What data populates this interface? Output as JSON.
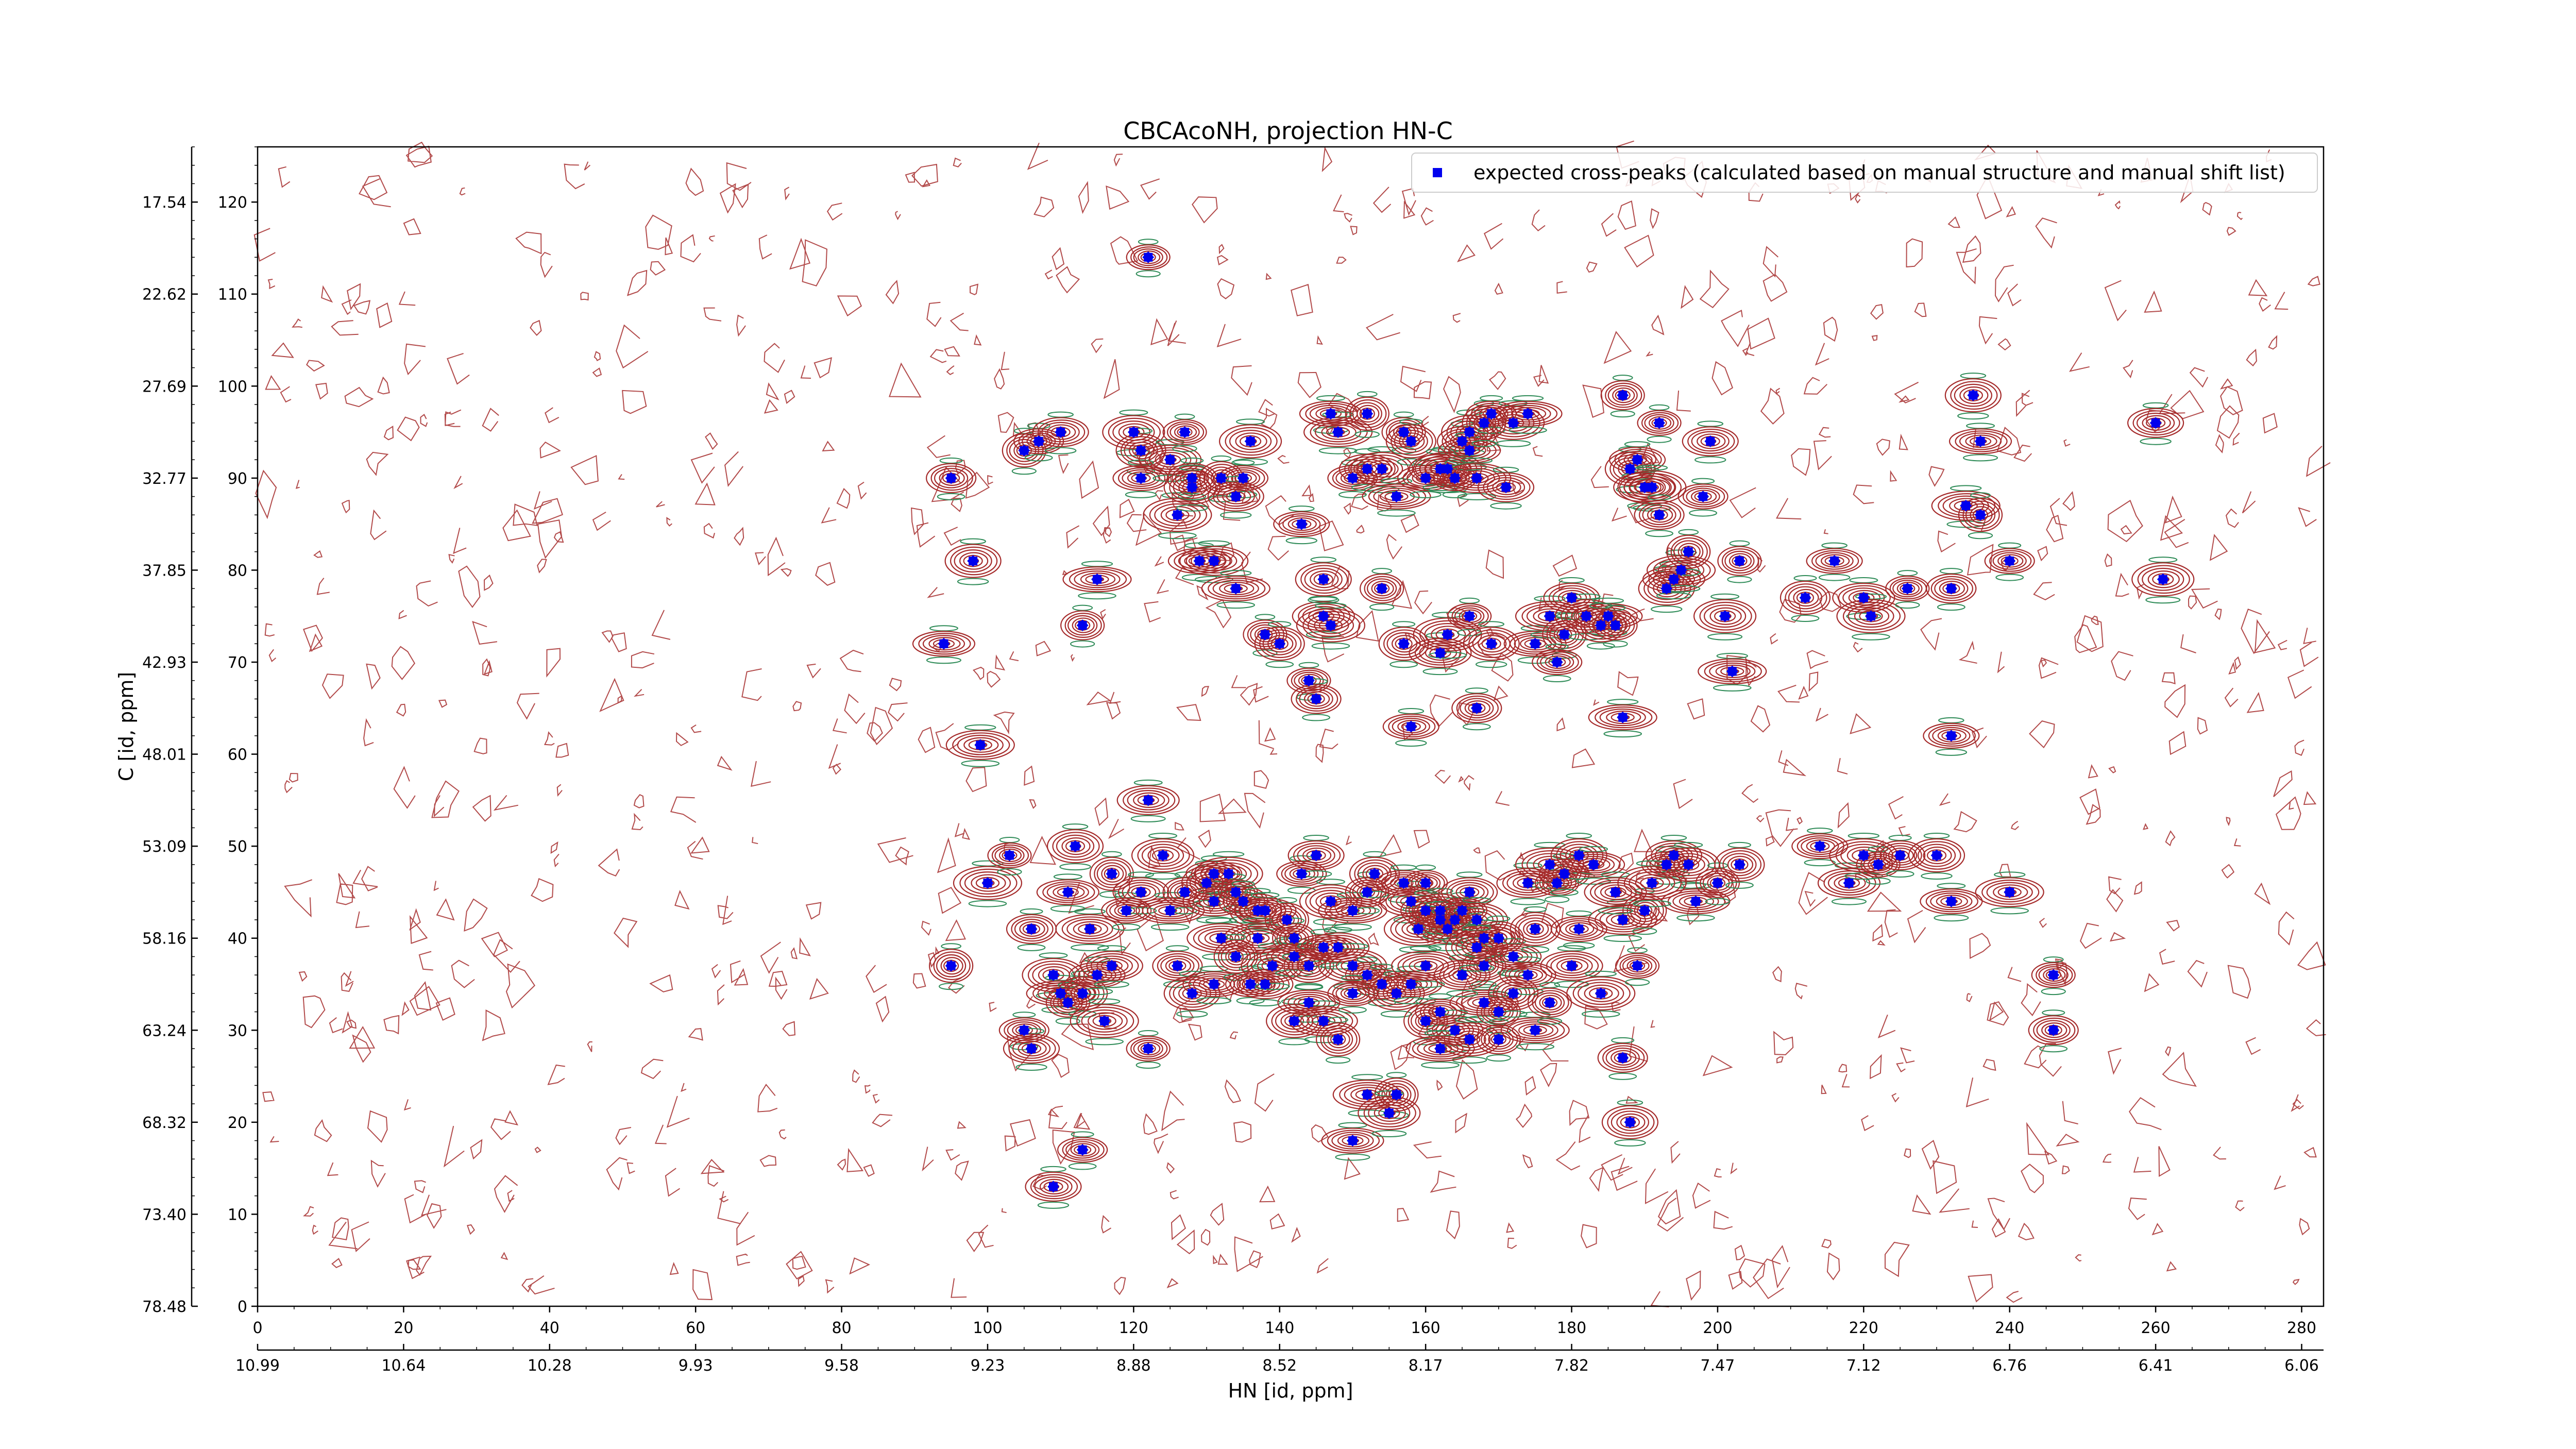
{
  "chart_data": {
    "type": "scatter",
    "title": "CBCAcoNH, projection HN-C",
    "xlabel": "HN [id, ppm]",
    "ylabel": "C [id, ppm]",
    "xlim": [
      0,
      283
    ],
    "ylim": [
      0,
      126
    ],
    "grid": false,
    "legend_position": "top-right",
    "x_ticks": [
      "0",
      "20",
      "40",
      "60",
      "80",
      "100",
      "120",
      "140",
      "160",
      "180",
      "200",
      "220",
      "240",
      "260",
      "280"
    ],
    "x_ppm_ticks": [
      "10.99",
      "10.64",
      "10.28",
      "9.93",
      "9.58",
      "9.23",
      "8.88",
      "8.52",
      "8.17",
      "7.82",
      "7.47",
      "7.12",
      "6.76",
      "6.41",
      "6.06"
    ],
    "y_ticks": [
      "0",
      "10",
      "20",
      "30",
      "40",
      "50",
      "60",
      "70",
      "80",
      "90",
      "100",
      "110",
      "120"
    ],
    "y_ppm_ticks": [
      "78.48",
      "73.40",
      "68.32",
      "63.24",
      "58.16",
      "53.09",
      "48.01",
      "42.93",
      "37.85",
      "32.77",
      "27.69",
      "22.62",
      "17.54"
    ],
    "colors": {
      "contour_positive": "#a52a2a",
      "contour_negative": "#2e8b57",
      "peak_marker": "#0000ee"
    },
    "series": [
      {
        "name": "expected cross-peaks (calculated based on manual structure and manual shift list)",
        "points": [
          [
            122,
            114
          ],
          [
            95,
            90
          ],
          [
            98,
            81
          ],
          [
            94,
            72
          ],
          [
            99,
            61
          ],
          [
            105,
            93
          ],
          [
            107,
            94
          ],
          [
            110,
            95
          ],
          [
            120,
            95
          ],
          [
            115,
            79
          ],
          [
            113,
            74
          ],
          [
            121,
            93
          ],
          [
            121,
            90
          ],
          [
            125,
            92
          ],
          [
            126,
            86
          ],
          [
            127,
            95
          ],
          [
            128,
            90
          ],
          [
            128,
            89
          ],
          [
            129,
            81
          ],
          [
            131,
            81
          ],
          [
            132,
            90
          ],
          [
            135,
            90
          ],
          [
            134,
            88
          ],
          [
            136,
            94
          ],
          [
            134,
            78
          ],
          [
            138,
            73
          ],
          [
            140,
            72
          ],
          [
            143,
            85
          ],
          [
            146,
            75
          ],
          [
            147,
            74
          ],
          [
            144,
            68
          ],
          [
            145,
            66
          ],
          [
            146,
            79
          ],
          [
            147,
            97
          ],
          [
            148,
            95
          ],
          [
            152,
            97
          ],
          [
            150,
            90
          ],
          [
            152,
            91
          ],
          [
            154,
            91
          ],
          [
            156,
            88
          ],
          [
            157,
            95
          ],
          [
            158,
            94
          ],
          [
            160,
            90
          ],
          [
            162,
            91
          ],
          [
            163,
            91
          ],
          [
            164,
            90
          ],
          [
            165,
            94
          ],
          [
            166,
            95
          ],
          [
            166,
            93
          ],
          [
            167,
            90
          ],
          [
            168,
            96
          ],
          [
            169,
            97
          ],
          [
            171,
            89
          ],
          [
            172,
            96
          ],
          [
            174,
            97
          ],
          [
            154,
            78
          ],
          [
            157,
            72
          ],
          [
            158,
            63
          ],
          [
            162,
            71
          ],
          [
            163,
            73
          ],
          [
            166,
            75
          ],
          [
            167,
            65
          ],
          [
            169,
            72
          ],
          [
            175,
            72
          ],
          [
            177,
            75
          ],
          [
            179,
            73
          ],
          [
            178,
            70
          ],
          [
            180,
            77
          ],
          [
            182,
            75
          ],
          [
            185,
            75
          ],
          [
            187,
            99
          ],
          [
            188,
            91
          ],
          [
            189,
            92
          ],
          [
            190,
            89
          ],
          [
            191,
            89
          ],
          [
            192,
            96
          ],
          [
            192,
            86
          ],
          [
            193,
            78
          ],
          [
            194,
            79
          ],
          [
            195,
            80
          ],
          [
            196,
            82
          ],
          [
            198,
            88
          ],
          [
            199,
            94
          ],
          [
            201,
            75
          ],
          [
            202,
            69
          ],
          [
            203,
            81
          ],
          [
            212,
            77
          ],
          [
            216,
            81
          ],
          [
            220,
            77
          ],
          [
            221,
            75
          ],
          [
            226,
            78
          ],
          [
            232,
            78
          ],
          [
            235,
            99
          ],
          [
            236,
            94
          ],
          [
            234,
            87
          ],
          [
            236,
            86
          ],
          [
            240,
            81
          ],
          [
            260,
            96
          ],
          [
            261,
            79
          ],
          [
            187,
            64
          ],
          [
            186,
            74
          ],
          [
            184,
            74
          ],
          [
            232,
            62
          ],
          [
            122,
            55
          ],
          [
            100,
            46
          ],
          [
            103,
            49
          ],
          [
            106,
            41
          ],
          [
            112,
            50
          ],
          [
            111,
            45
          ],
          [
            114,
            41
          ],
          [
            117,
            47
          ],
          [
            119,
            43
          ],
          [
            121,
            45
          ],
          [
            124,
            49
          ],
          [
            125,
            43
          ],
          [
            127,
            45
          ],
          [
            130,
            46
          ],
          [
            131,
            47
          ],
          [
            131,
            44
          ],
          [
            133,
            47
          ],
          [
            134,
            45
          ],
          [
            135,
            44
          ],
          [
            137,
            43
          ],
          [
            138,
            43
          ],
          [
            137,
            40
          ],
          [
            141,
            42
          ],
          [
            143,
            47
          ],
          [
            145,
            49
          ],
          [
            147,
            44
          ],
          [
            150,
            43
          ],
          [
            152,
            45
          ],
          [
            153,
            47
          ],
          [
            157,
            46
          ],
          [
            158,
            44
          ],
          [
            159,
            41
          ],
          [
            160,
            46
          ],
          [
            160,
            43
          ],
          [
            162,
            43
          ],
          [
            162,
            42
          ],
          [
            163,
            41
          ],
          [
            164,
            42
          ],
          [
            165,
            43
          ],
          [
            166,
            45
          ],
          [
            167,
            42
          ],
          [
            168,
            40
          ],
          [
            168,
            37
          ],
          [
            170,
            40
          ],
          [
            172,
            38
          ],
          [
            174,
            46
          ],
          [
            177,
            48
          ],
          [
            178,
            46
          ],
          [
            179,
            47
          ],
          [
            181,
            49
          ],
          [
            183,
            48
          ],
          [
            187,
            42
          ],
          [
            190,
            43
          ],
          [
            193,
            48
          ],
          [
            194,
            49
          ],
          [
            196,
            48
          ],
          [
            197,
            44
          ],
          [
            200,
            46
          ],
          [
            203,
            48
          ],
          [
            214,
            50
          ],
          [
            218,
            46
          ],
          [
            220,
            49
          ],
          [
            222,
            48
          ],
          [
            225,
            49
          ],
          [
            230,
            49
          ],
          [
            232,
            44
          ],
          [
            240,
            45
          ],
          [
            95,
            37
          ],
          [
            105,
            30
          ],
          [
            106,
            28
          ],
          [
            109,
            36
          ],
          [
            110,
            34
          ],
          [
            111,
            33
          ],
          [
            113,
            34
          ],
          [
            115,
            36
          ],
          [
            117,
            37
          ],
          [
            116,
            31
          ],
          [
            122,
            28
          ],
          [
            126,
            37
          ],
          [
            128,
            34
          ],
          [
            131,
            35
          ],
          [
            132,
            40
          ],
          [
            134,
            38
          ],
          [
            136,
            35
          ],
          [
            138,
            35
          ],
          [
            139,
            37
          ],
          [
            142,
            38
          ],
          [
            142,
            40
          ],
          [
            144,
            37
          ],
          [
            146,
            39
          ],
          [
            148,
            39
          ],
          [
            150,
            37
          ],
          [
            152,
            36
          ],
          [
            154,
            35
          ],
          [
            156,
            34
          ],
          [
            158,
            35
          ],
          [
            160,
            37
          ],
          [
            160,
            31
          ],
          [
            162,
            32
          ],
          [
            164,
            30
          ],
          [
            166,
            29
          ],
          [
            168,
            33
          ],
          [
            170,
            32
          ],
          [
            172,
            34
          ],
          [
            174,
            36
          ],
          [
            180,
            37
          ],
          [
            184,
            34
          ],
          [
            189,
            37
          ],
          [
            187,
            27
          ],
          [
            188,
            20
          ],
          [
            150,
            18
          ],
          [
            152,
            23
          ],
          [
            156,
            23
          ],
          [
            113,
            17
          ],
          [
            109,
            13
          ],
          [
            155,
            21
          ],
          [
            162,
            28
          ],
          [
            170,
            29
          ],
          [
            175,
            41
          ],
          [
            181,
            41
          ],
          [
            186,
            45
          ],
          [
            191,
            46
          ],
          [
            246,
            36
          ],
          [
            246,
            30
          ],
          [
            142,
            31
          ],
          [
            144,
            33
          ],
          [
            146,
            31
          ],
          [
            148,
            29
          ],
          [
            150,
            34
          ],
          [
            165,
            36
          ],
          [
            167,
            39
          ],
          [
            175,
            30
          ],
          [
            177,
            33
          ]
        ]
      }
    ]
  }
}
